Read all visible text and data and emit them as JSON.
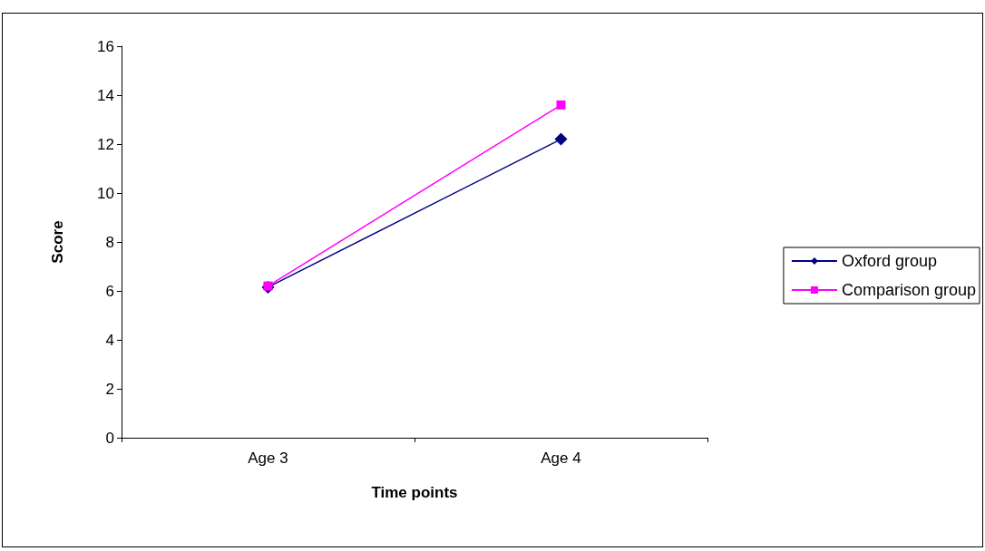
{
  "chart_data": {
    "type": "line",
    "xlabel": "Time points",
    "ylabel": "Score",
    "categories": [
      "Age 3",
      "Age 4"
    ],
    "series": [
      {
        "name": "Oxford group",
        "color": "#000080",
        "marker": "diamond",
        "values": [
          6.15,
          12.2
        ]
      },
      {
        "name": "Comparison group",
        "color": "#ff00ff",
        "marker": "square",
        "values": [
          6.2,
          13.6
        ]
      }
    ],
    "ylim": [
      0,
      16
    ],
    "yticks": [
      0,
      2,
      4,
      6,
      8,
      10,
      12,
      14,
      16
    ],
    "grid": false,
    "legend": "right"
  }
}
